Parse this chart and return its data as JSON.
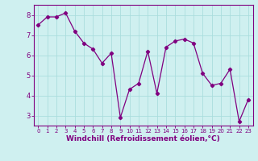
{
  "x": [
    0,
    1,
    2,
    3,
    4,
    5,
    6,
    7,
    8,
    9,
    10,
    11,
    12,
    13,
    14,
    15,
    16,
    17,
    18,
    19,
    20,
    21,
    22,
    23
  ],
  "y": [
    7.5,
    7.9,
    7.9,
    8.1,
    7.2,
    6.6,
    6.3,
    5.6,
    6.1,
    2.9,
    4.3,
    4.6,
    6.2,
    4.1,
    6.4,
    6.7,
    6.8,
    6.6,
    5.1,
    4.5,
    4.6,
    5.3,
    2.7,
    3.8
  ],
  "line_color": "#800080",
  "marker": "D",
  "marker_size": 2.2,
  "bg_color": "#cff0f0",
  "grid_color": "#aadddd",
  "xlabel": "Windchill (Refroidissement éolien,°C)",
  "xlim": [
    -0.5,
    23.5
  ],
  "ylim": [
    2.5,
    8.5
  ],
  "yticks": [
    3,
    4,
    5,
    6,
    7,
    8
  ],
  "xtick_labels": [
    "0",
    "1",
    "2",
    "3",
    "4",
    "5",
    "6",
    "7",
    "8",
    "9",
    "10",
    "11",
    "12",
    "13",
    "14",
    "15",
    "16",
    "17",
    "18",
    "19",
    "20",
    "21",
    "22",
    "23"
  ],
  "xlabel_color": "#800080",
  "tick_color": "#800080",
  "axis_color": "#800080",
  "xtick_fontsize": 5.0,
  "ytick_fontsize": 6.0,
  "xlabel_fontsize": 6.5
}
